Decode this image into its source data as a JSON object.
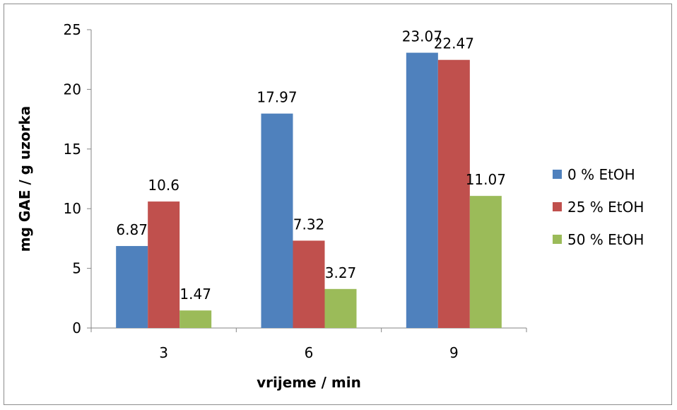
{
  "chart_data": {
    "type": "bar",
    "categories": [
      "3",
      "6",
      "9"
    ],
    "series": [
      {
        "name": "0 % EtOH",
        "values": [
          6.87,
          17.97,
          23.07
        ],
        "color": "#4f81bd"
      },
      {
        "name": "25 % EtOH",
        "values": [
          10.6,
          7.32,
          22.47
        ],
        "color": "#c0504d"
      },
      {
        "name": "50 % EtOH",
        "values": [
          1.47,
          3.27,
          11.07
        ],
        "color": "#9bbb59"
      }
    ],
    "data_labels": [
      [
        "6.87",
        "17.97",
        "23.07"
      ],
      [
        "10.6",
        "7.32",
        "22.47"
      ],
      [
        "1.47",
        "3.27",
        "11.07"
      ]
    ],
    "yticks": [
      0,
      5,
      10,
      15,
      20,
      25
    ],
    "ylim": [
      0,
      25
    ],
    "xlabel": "vrijeme / min",
    "ylabel": "mg GAE / g uzorka",
    "legend_position": "right",
    "grid": false
  }
}
